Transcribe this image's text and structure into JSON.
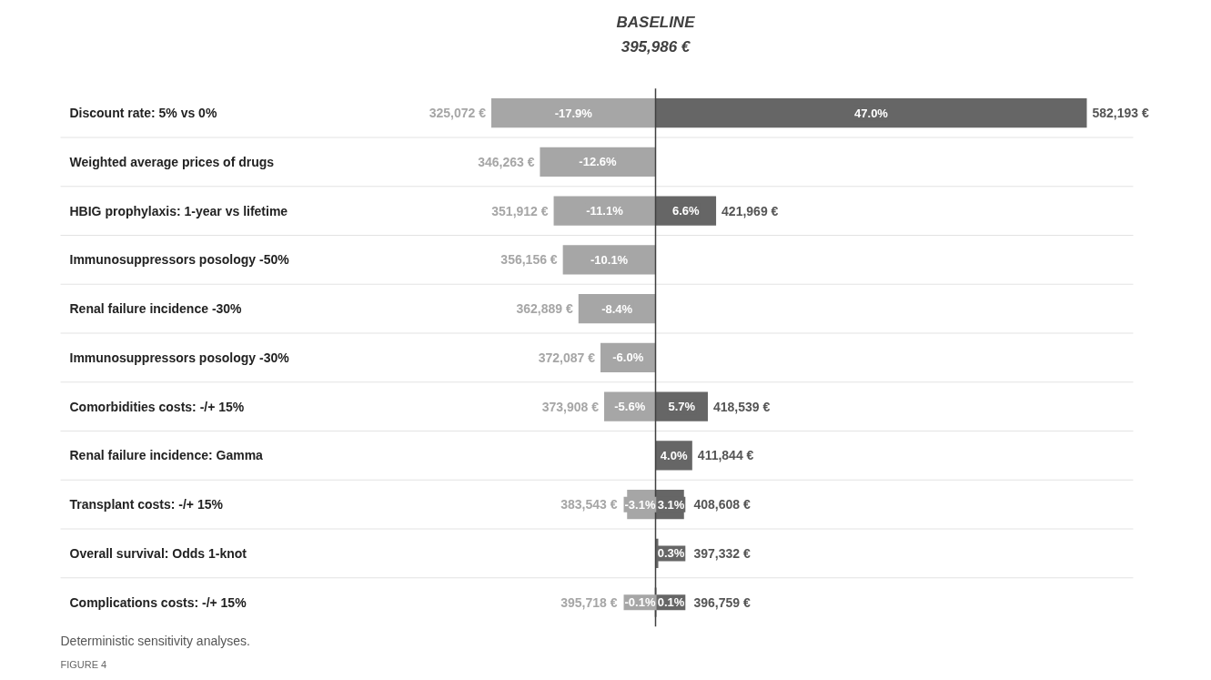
{
  "chart_data": {
    "type": "bar",
    "orientation": "horizontal",
    "title": "Deterministic sensitivity analyses.",
    "categories": [
      "Discount rate: 5% vs 0%",
      "Weighted average prices of drugs",
      "HBIG prophylaxis: 1-year vs lifetime",
      "Immunosuppressors posology -50%",
      "Renal failure incidence -30%",
      "Immunosuppressors posology -30%",
      "Comorbidities costs: -/+ 15%",
      "Renal failure incidence: Gamma",
      "Transplant costs: -/+ 15%",
      "Overall survival: Odds 1-knot",
      "Complications costs: -/+ 15%"
    ],
    "series": [
      {
        "color": "#a6a6a6",
        "values": [
          -17.9,
          -12.6,
          -11.1,
          -10.1,
          -8.4,
          -6.0,
          -5.6,
          null,
          -3.1,
          null,
          -0.1
        ],
        "value_labels": [
          "-17.9%",
          "-12.6%",
          "-11.1%",
          "-10.1%",
          "-8.4%",
          "-6.0%",
          "-5.6%",
          null,
          "-3.1%",
          null,
          "-0.1%"
        ]
      },
      {
        "color": "#666666",
        "values": [
          47.0,
          null,
          6.6,
          null,
          null,
          null,
          5.7,
          4.0,
          3.1,
          0.3,
          0.1
        ],
        "value_labels": [
          "47.0%",
          null,
          "6.6%",
          null,
          null,
          null,
          "5.7%",
          "4.0%",
          "3.1%",
          "0.3%",
          "0.1%"
        ]
      }
    ],
    "ref_lines": [
      {
        "axis": "x",
        "value": 0,
        "label": "BASELINE",
        "color": "#404040"
      }
    ],
    "annotations": [
      "395,986 €",
      "FIGURE 4",
      {
        "text": "325,072 €",
        "x": -17.9,
        "y": "Discount rate: 5% vs 0%"
      },
      {
        "text": "582,193 €",
        "x": 47.0,
        "y": "Discount rate: 5% vs 0%"
      },
      {
        "text": "346,263 €",
        "x": -12.6,
        "y": "Weighted average prices of drugs"
      },
      {
        "text": "351,912 €",
        "x": -11.1,
        "y": "HBIG prophylaxis: 1-year vs lifetime"
      },
      {
        "text": "421,969 €",
        "x": 6.6,
        "y": "HBIG prophylaxis: 1-year vs lifetime"
      },
      {
        "text": "356,156 €",
        "x": -10.1,
        "y": "Immunosuppressors posology -50%"
      },
      {
        "text": "362,889 €",
        "x": -8.4,
        "y": "Renal failure incidence -30%"
      },
      {
        "text": "372,087 €",
        "x": -6.0,
        "y": "Immunosuppressors posology -30%"
      },
      {
        "text": "373,908 €",
        "x": -5.6,
        "y": "Comorbidities costs: -/+ 15%"
      },
      {
        "text": "418,539 €",
        "x": 5.7,
        "y": "Comorbidities costs: -/+ 15%"
      },
      {
        "text": "411,844 €",
        "x": 4.0,
        "y": "Renal failure incidence: Gamma"
      },
      {
        "text": "383,543 €",
        "x": -3.1,
        "y": "Transplant costs: -/+ 15%"
      },
      {
        "text": "408,608 €",
        "x": 3.1,
        "y": "Transplant costs: -/+ 15%"
      },
      {
        "text": "397,332 €",
        "x": 0.3,
        "y": "Overall survival: Odds 1-knot"
      },
      {
        "text": "395,718 €",
        "x": -0.1,
        "y": "Complications costs: -/+ 15%"
      },
      {
        "text": "396,759 €",
        "x": 0.1,
        "y": "Complications costs: -/+ 15%"
      }
    ],
    "grid": "y"
  }
}
